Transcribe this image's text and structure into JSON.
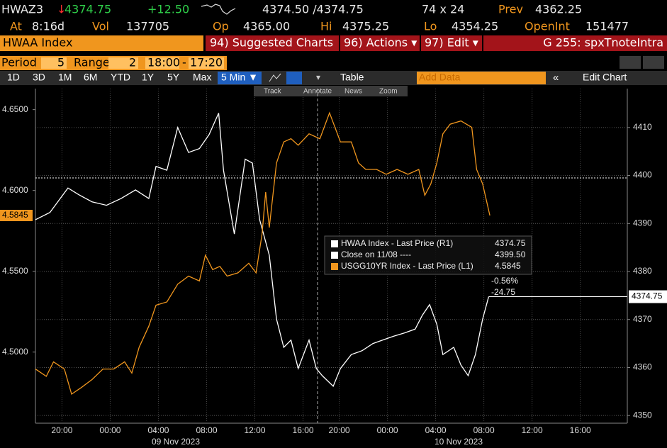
{
  "header": {
    "ticker": "HWAZ3",
    "direction": "↓",
    "last": "4374.75",
    "change": "+12.50",
    "bid_ask": "4374.50 /4374.75",
    "size": "74 x 24",
    "prev_label": "Prev",
    "prev": "4362.25",
    "at_label": "At",
    "at": "8:16d",
    "vol_label": "Vol",
    "vol": "137705",
    "op_label": "Op",
    "op": "4365.00",
    "hi_label": "Hi",
    "hi": "4375.25",
    "lo_label": "Lo",
    "lo": "4354.25",
    "oi_label": "OpenInt",
    "oi": "151477"
  },
  "toolbar": {
    "security": "HWAA Index",
    "suggested": "94) Suggested Charts",
    "actions": "96) Actions ▾",
    "edit": "97) Edit ▾",
    "page": "G 255: spxTnoteIntra"
  },
  "period": {
    "period_label": "Period",
    "period": "5",
    "range_label": "Range",
    "range": "2",
    "from": "18:00",
    "dash": "-",
    "to": "17:20"
  },
  "buttons": {
    "ranges": [
      "1D",
      "3D",
      "1M",
      "6M",
      "YTD",
      "1Y",
      "5Y",
      "Max"
    ],
    "interval": "5 Min ▼",
    "table": "Table",
    "add_data": "Add Data",
    "edit_chart": "Edit Chart"
  },
  "tools": [
    "Track",
    "Annotate",
    "News",
    "Zoom"
  ],
  "chart_data": {
    "type": "line",
    "grid": "y2",
    "xlim": [
      -0.2,
      48.9
    ],
    "xticks": [
      {
        "value": 2,
        "label": "20:00"
      },
      {
        "value": 6,
        "label": "00:00"
      },
      {
        "value": 10,
        "label": "04:00"
      },
      {
        "value": 14,
        "label": "08:00"
      },
      {
        "value": 18,
        "label": "12:00"
      },
      {
        "value": 22,
        "label": "16:00"
      },
      {
        "value": 25,
        "label": "20:00"
      },
      {
        "value": 29,
        "label": "00:00"
      },
      {
        "value": 33,
        "label": "04:00"
      },
      {
        "value": 37,
        "label": "08:00"
      },
      {
        "value": 41,
        "label": "12:00"
      },
      {
        "value": 45,
        "label": "16:00"
      }
    ],
    "x_groups": [
      "09 Nov 2023",
      "10 Nov 2023"
    ],
    "ylim": [
      4.456,
      4.663
    ],
    "yticks": [
      {
        "value": 4.5,
        "label": "4.5000"
      },
      {
        "value": 4.55,
        "label": "4.5500"
      },
      {
        "value": 4.6,
        "label": "4.6000"
      },
      {
        "value": 4.65,
        "label": "4.6500"
      }
    ],
    "y2lim": [
      4348.4,
      4418.1
    ],
    "y2ticks": [
      4350,
      4360,
      4370,
      4380,
      4390,
      4400,
      4410
    ],
    "series": [
      {
        "name": "HWAA Index - Last Price (R1)",
        "color": "#ffffff",
        "axis": "y2",
        "last_label": "4374.75",
        "x": [
          -0.2,
          1.0,
          2.5,
          3.4,
          4.5,
          5.7,
          6.9,
          8.1,
          9.2,
          9.8,
          10.7,
          11.6,
          12.5,
          13.4,
          14.2,
          15.0,
          15.4,
          16.3,
          17.2,
          17.8,
          18.4,
          19.2,
          19.8,
          20.4,
          21.0,
          21.6,
          22.5,
          23.1,
          23.6,
          24.5,
          25.1,
          26.0,
          26.9,
          27.8,
          28.6,
          29.5,
          30.4,
          31.3,
          31.9,
          32.5,
          33.1,
          33.6,
          34.5,
          35.1,
          35.7,
          36.3,
          36.9,
          37.4
        ],
        "values": [
          4390.8,
          4392.3,
          4397.4,
          4396.0,
          4394.5,
          4393.8,
          4395.2,
          4397.0,
          4395.2,
          4401.9,
          4401.1,
          4410,
          4404.8,
          4405.6,
          4408.5,
          4413.0,
          4401.1,
          4387.8,
          4403.4,
          4402.6,
          4390.8,
          4383.4,
          4370.1,
          4364.2,
          4365.7,
          4359.8,
          4365.7,
          4359.8,
          4358.3,
          4356.1,
          4359.8,
          4362.7,
          4363.5,
          4365.0,
          4365.7,
          4366.5,
          4367.2,
          4368.0,
          4370.9,
          4373.1,
          4369.0,
          4362.7,
          4364.2,
          4360.5,
          4358.3,
          4362.7,
          4370.1,
          4374.75
        ]
      },
      {
        "name": "USGG10YR Index - Last Price (L1)",
        "color": "#f0961e",
        "axis": "y",
        "last_label": "4.5845",
        "x": [
          -0.2,
          0.7,
          1.3,
          2.2,
          2.8,
          3.6,
          4.5,
          5.4,
          6.3,
          7.2,
          7.8,
          8.4,
          9.2,
          9.8,
          10.7,
          11.6,
          12.5,
          13.4,
          13.9,
          14.5,
          15.1,
          15.7,
          16.6,
          17.5,
          18.1,
          18.6,
          18.9,
          19.2,
          19.8,
          20.4,
          21.0,
          21.6,
          22.5,
          23.4,
          24.2,
          25.1,
          26.0,
          26.6,
          27.2,
          28.1,
          28.9,
          29.8,
          30.7,
          31.6,
          32.1,
          32.6,
          33.1,
          33.6,
          34.2,
          35.1,
          36.0,
          36.4,
          36.9,
          37.5
        ],
        "values": [
          4.4895,
          4.485,
          4.494,
          4.4895,
          4.474,
          4.478,
          4.483,
          4.4895,
          4.4895,
          4.494,
          4.487,
          4.503,
          4.516,
          4.529,
          4.531,
          4.542,
          4.547,
          4.544,
          4.56,
          4.551,
          4.553,
          4.547,
          4.549,
          4.555,
          4.549,
          4.573,
          4.599,
          4.577,
          4.617,
          4.63,
          4.632,
          4.628,
          4.635,
          4.632,
          4.648,
          4.63,
          4.63,
          4.617,
          4.613,
          4.613,
          4.61,
          4.613,
          4.61,
          4.613,
          4.597,
          4.604,
          4.617,
          4.635,
          4.641,
          4.643,
          4.639,
          4.613,
          4.604,
          4.5845
        ]
      }
    ],
    "close_line": {
      "name": "Close on 11/08 ----",
      "value": 4399.5,
      "value_label": "4399.50",
      "color": "#ffffff",
      "axis": "y2"
    },
    "annotations": [
      "-0.56%",
      "-24.75"
    ]
  }
}
